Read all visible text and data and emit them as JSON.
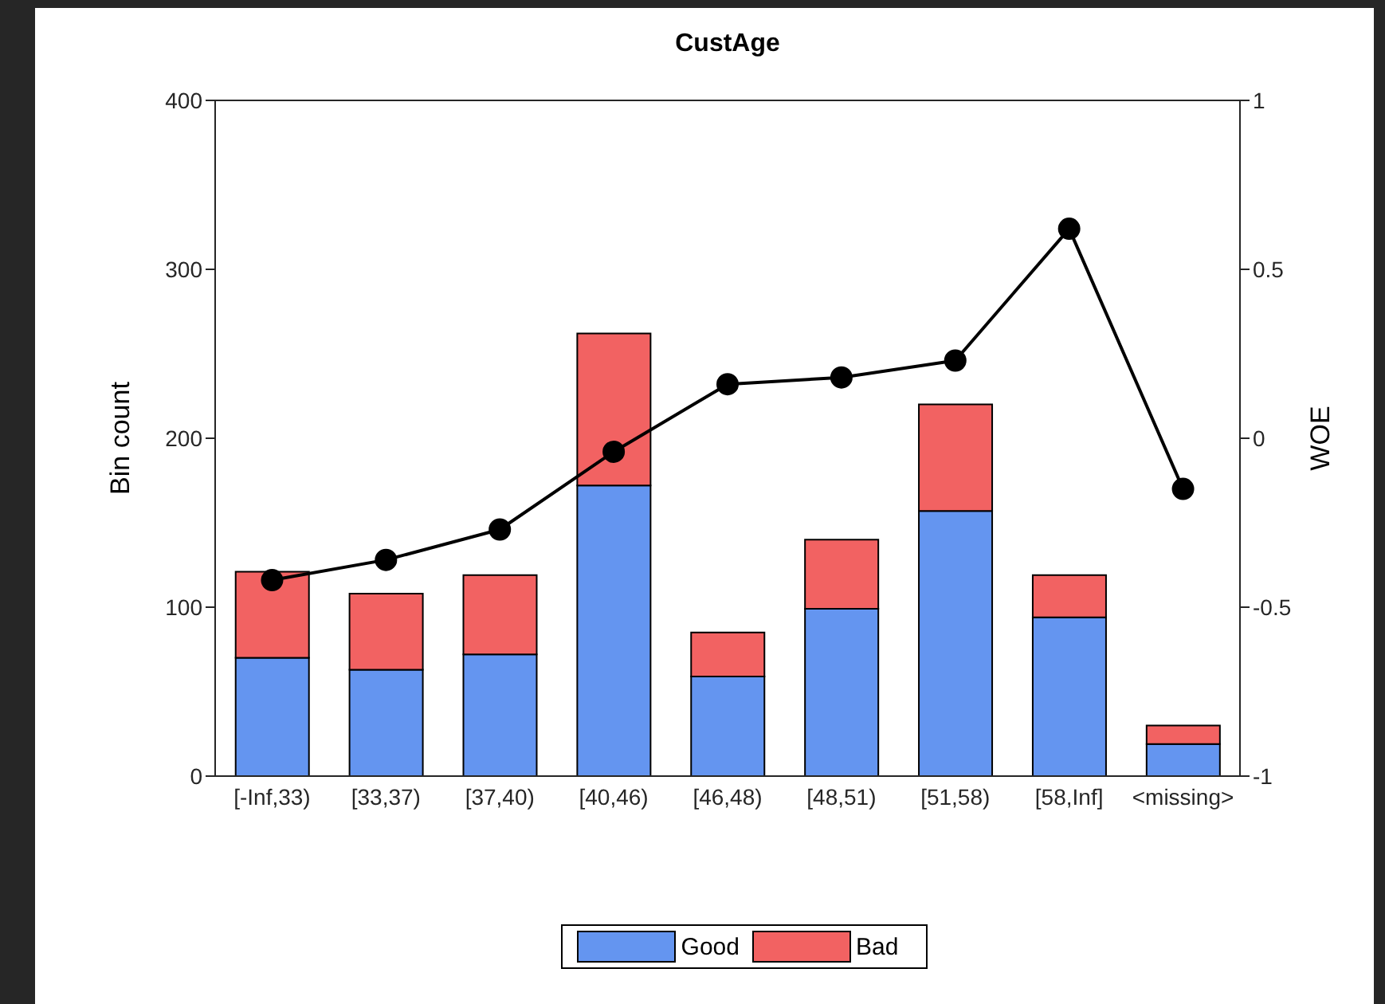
{
  "chart_data": {
    "type": "bar",
    "title": "CustAge",
    "ylabel": "Bin count",
    "y2label": "WOE",
    "categories": [
      "[-Inf,33)",
      "[33,37)",
      "[37,40)",
      "[40,46)",
      "[46,48)",
      "[48,51)",
      "[51,58)",
      "[58,Inf]",
      "<missing>"
    ],
    "series": [
      {
        "name": "Good",
        "color": "#6495f0",
        "values": [
          70,
          63,
          72,
          172,
          59,
          99,
          157,
          94,
          19
        ]
      },
      {
        "name": "Bad",
        "color": "#f26262",
        "values": [
          51,
          45,
          47,
          90,
          26,
          41,
          63,
          25,
          11
        ]
      },
      {
        "type": "line",
        "axis": "y2",
        "color": "#000000",
        "values": [
          -0.42,
          -0.36,
          -0.27,
          -0.04,
          0.16,
          0.18,
          0.23,
          0.62,
          -0.15
        ]
      }
    ],
    "stacked": true,
    "ylim": [
      0,
      400
    ],
    "yticks": [
      0,
      100,
      200,
      300,
      400
    ],
    "y2lim": [
      -1,
      1
    ],
    "y2ticks": [
      -1,
      -0.5,
      0,
      0.5,
      1
    ],
    "legend": "bottom",
    "marker": "circle",
    "grid": false
  }
}
